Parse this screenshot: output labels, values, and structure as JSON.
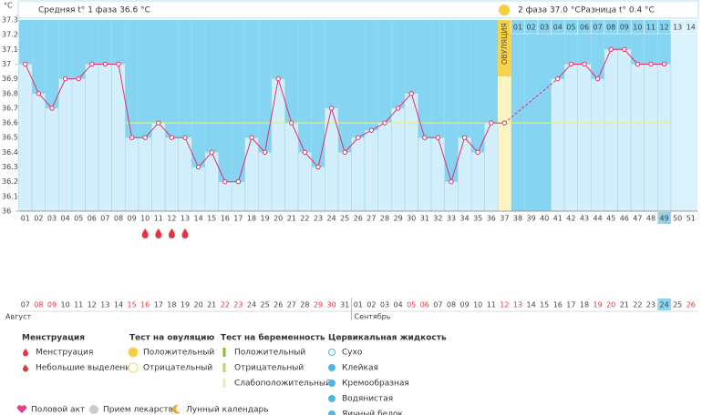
{
  "chart_data": {
    "type": "line",
    "unit": "°C",
    "header": {
      "phase1": "Средняя t° 1 фаза 36.6 °C",
      "phase2": "2 фаза 37.0 °C",
      "diff": "Разница t° 0.4 °C"
    },
    "ovulation_label": "ОВУЛЯЦИЯ",
    "ovulation_day": 37,
    "coverline": 36.6,
    "today_day": 49,
    "categories": [
      "01",
      "02",
      "03",
      "04",
      "05",
      "06",
      "07",
      "08",
      "09",
      "10",
      "11",
      "12",
      "13",
      "14",
      "15",
      "16",
      "17",
      "18",
      "19",
      "20",
      "21",
      "22",
      "23",
      "24",
      "25",
      "26",
      "27",
      "28",
      "29",
      "30",
      "31",
      "32",
      "33",
      "34",
      "35",
      "36",
      "37",
      "38",
      "39",
      "40",
      "41",
      "42",
      "43",
      "44",
      "45",
      "46",
      "47",
      "48",
      "49",
      "50",
      "51"
    ],
    "phase2_days": [
      "01",
      "02",
      "03",
      "04",
      "05",
      "06",
      "07",
      "08",
      "09",
      "10",
      "11",
      "12",
      "13",
      "14"
    ],
    "values": [
      37.0,
      36.8,
      36.7,
      36.9,
      36.9,
      37.0,
      37.0,
      37.0,
      36.5,
      36.5,
      36.6,
      36.5,
      36.5,
      36.3,
      36.4,
      36.2,
      36.2,
      36.5,
      36.4,
      36.9,
      36.6,
      36.4,
      36.3,
      36.7,
      36.4,
      36.5,
      36.55,
      36.6,
      36.7,
      36.8,
      36.5,
      36.5,
      36.2,
      36.5,
      36.4,
      36.6,
      36.6,
      null,
      null,
      null,
      36.9,
      37.0,
      37.0,
      36.9,
      37.1,
      37.1,
      37.0,
      37.0,
      37.0,
      null,
      null
    ],
    "color": "#e0336b",
    "bar_color": "#d2effb",
    "background_color": "#84d4f2",
    "ylim": [
      36,
      37.3
    ],
    "yticks": [
      36,
      36.1,
      36.2,
      36.3,
      36.4,
      36.5,
      36.6,
      36.7,
      36.8,
      36.9,
      37,
      37.1,
      37.2,
      37.3
    ],
    "menstruation_days": [
      10,
      11,
      12,
      13
    ],
    "dates": [
      "07",
      "08",
      "09",
      "10",
      "11",
      "12",
      "13",
      "14",
      "15",
      "16",
      "17",
      "18",
      "19",
      "20",
      "21",
      "22",
      "23",
      "24",
      "25",
      "26",
      "27",
      "28",
      "29",
      "30",
      "31",
      "01",
      "02",
      "03",
      "04",
      "05",
      "06",
      "07",
      "08",
      "09",
      "10",
      "11",
      "12",
      "13",
      "14",
      "15",
      "16",
      "17",
      "18",
      "19",
      "20",
      "21",
      "22",
      "23",
      "24",
      "25",
      "26"
    ],
    "date_colors": [
      "#444",
      "#e8323c",
      "#e8323c",
      "#444",
      "#444",
      "#444",
      "#444",
      "#444",
      "#e8323c",
      "#e8323c",
      "#444",
      "#444",
      "#444",
      "#444",
      "#444",
      "#e8323c",
      "#e8323c",
      "#444",
      "#444",
      "#444",
      "#444",
      "#444",
      "#e8323c",
      "#e8323c",
      "#444",
      "#444",
      "#444",
      "#444",
      "#444",
      "#e8323c",
      "#e8323c",
      "#444",
      "#444",
      "#444",
      "#444",
      "#444",
      "#e8323c",
      "#e8323c",
      "#444",
      "#444",
      "#444",
      "#444",
      "#444",
      "#e8323c",
      "#e8323c",
      "#444",
      "#444",
      "#444",
      "#444",
      "#444",
      "#e8323c"
    ],
    "months": [
      "Август",
      "Сентябрь"
    ]
  },
  "legend": {
    "groups": [
      {
        "title": "Менструация",
        "items": [
          "Менструация",
          "Небольшие выделения"
        ]
      },
      {
        "title": "Тест на овуляцию",
        "items": [
          "Положительный",
          "Отрицательный"
        ]
      },
      {
        "title": "Тест на беременность",
        "items": [
          "Положительный",
          "Отрицательный",
          "Слабоположительный"
        ]
      },
      {
        "title": "Цервикальная жидкость",
        "items": [
          "Сухо",
          "Клейкая",
          "Кремообразная",
          "Водянистая",
          "Яичный белок"
        ]
      }
    ],
    "extras": [
      "Половой акт",
      "Прием лекарств",
      "Лунный календарь"
    ]
  }
}
